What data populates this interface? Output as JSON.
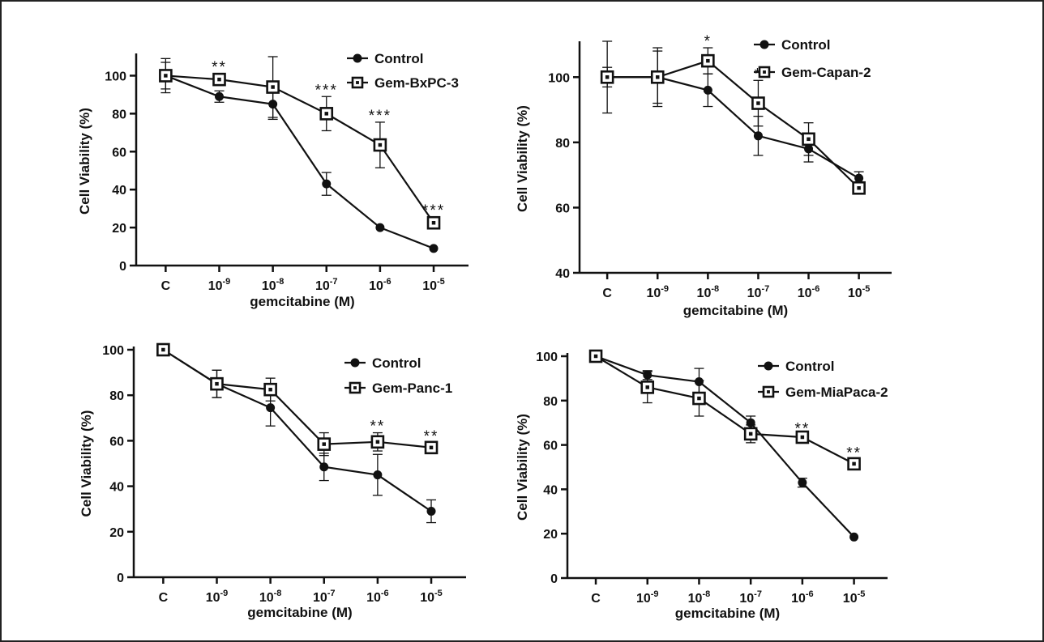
{
  "colors": {
    "line": "#111111",
    "frame": "#222222",
    "background": "#ffffff"
  },
  "chart_data": [
    {
      "type": "line",
      "categories": [
        "C",
        "10-9",
        "10-8",
        "10-7",
        "10-6",
        "10-5"
      ],
      "xlabel": "gemcitabine (M)",
      "ylabel": "Cell Viability (%)",
      "ylim": [
        0,
        110
      ],
      "yticks": [
        0,
        20,
        40,
        60,
        80,
        100
      ],
      "legend_position": "top-right",
      "series": [
        {
          "name": "Control",
          "marker": "filled-circle",
          "values": [
            100,
            89,
            85,
            43,
            20,
            9
          ],
          "errors": [
            9,
            3,
            8,
            6,
            0,
            0
          ]
        },
        {
          "name": "Gem-BxPC-3",
          "marker": "open-square",
          "values": [
            100,
            98,
            94,
            80,
            63.5,
            22.5
          ],
          "errors": [
            7,
            3,
            16,
            9,
            12,
            3
          ]
        }
      ],
      "significance": [
        {
          "index": 1,
          "label": "**"
        },
        {
          "index": 3,
          "label": "***"
        },
        {
          "index": 4,
          "label": "***"
        },
        {
          "index": 5,
          "label": "***"
        }
      ]
    },
    {
      "type": "line",
      "categories": [
        "C",
        "10-9",
        "10-8",
        "10-7",
        "10-6",
        "10-5"
      ],
      "xlabel": "gemcitabine (M)",
      "ylabel": "Cell Viability (%)",
      "ylim": [
        40,
        110
      ],
      "yticks": [
        40,
        60,
        80,
        100
      ],
      "legend_position": "top-right",
      "series": [
        {
          "name": "Control",
          "marker": "filled-circle",
          "values": [
            100,
            100,
            96,
            82,
            78,
            69
          ],
          "errors": [
            3,
            8,
            5,
            6,
            4,
            2
          ]
        },
        {
          "name": "Gem-Capan-2",
          "marker": "open-square",
          "values": [
            100,
            100,
            105,
            92,
            81,
            66
          ],
          "errors": [
            11,
            9,
            4,
            7,
            5,
            1
          ]
        }
      ],
      "significance": [
        {
          "index": 2,
          "label": "*"
        },
        {
          "index": 3,
          "label": "*"
        }
      ]
    },
    {
      "type": "line",
      "categories": [
        "C",
        "10-9",
        "10-8",
        "10-7",
        "10-6",
        "10-5"
      ],
      "xlabel": "gemcitabine (M)",
      "ylabel": "Cell Viability (%)",
      "ylim": [
        0,
        100
      ],
      "yticks": [
        0,
        20,
        40,
        60,
        80,
        100
      ],
      "legend_position": "top-right",
      "series": [
        {
          "name": "Control",
          "marker": "filled-circle",
          "values": [
            100,
            85,
            74.5,
            48.5,
            45,
            29
          ],
          "errors": [
            0,
            6,
            8,
            6,
            9,
            5
          ]
        },
        {
          "name": "Gem-Panc-1",
          "marker": "open-square",
          "values": [
            100,
            85,
            82.5,
            58.5,
            59.5,
            57
          ],
          "errors": [
            0,
            6,
            5,
            5,
            4,
            2
          ]
        }
      ],
      "significance": [
        {
          "index": 4,
          "label": "**"
        },
        {
          "index": 5,
          "label": "**"
        }
      ]
    },
    {
      "type": "line",
      "categories": [
        "C",
        "10-9",
        "10-8",
        "10-7",
        "10-6",
        "10-5"
      ],
      "xlabel": "gemcitabine (M)",
      "ylabel": "Cell Viability (%)",
      "ylim": [
        0,
        100
      ],
      "yticks": [
        0,
        20,
        40,
        60,
        80,
        100
      ],
      "legend_position": "top-right",
      "series": [
        {
          "name": "Control",
          "marker": "filled-circle",
          "values": [
            100,
            91.5,
            88.5,
            70,
            43,
            18.5
          ],
          "errors": [
            0,
            2,
            6,
            3,
            2,
            0
          ]
        },
        {
          "name": "Gem-MiaPaca-2",
          "marker": "open-square",
          "values": [
            100,
            86,
            81,
            65,
            63.5,
            51.5
          ],
          "errors": [
            0,
            7,
            8,
            4,
            1,
            2
          ]
        }
      ],
      "significance": [
        {
          "index": 4,
          "label": "**"
        },
        {
          "index": 5,
          "label": "**"
        }
      ]
    }
  ]
}
